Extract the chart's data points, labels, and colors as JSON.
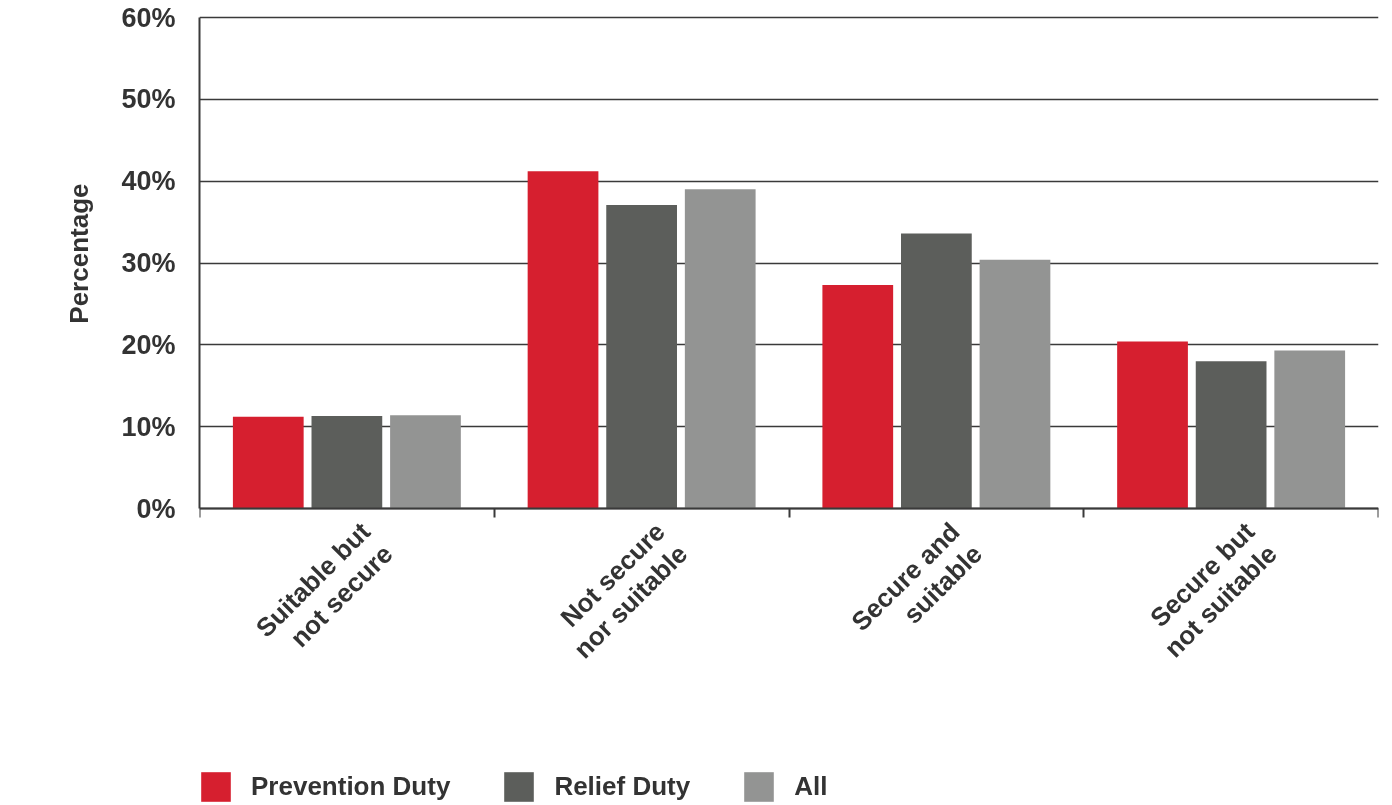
{
  "chart_data": {
    "type": "bar",
    "ylabel": "Percentage",
    "categories": [
      "Suitable but not secure",
      "Not secure nor suitable",
      "Secure and suitable",
      "Secure but not suitable"
    ],
    "series": [
      {
        "name": "Prevention Duty",
        "color": "#d61f2f",
        "values": [
          11.2,
          41.2,
          27.3,
          20.4
        ]
      },
      {
        "name": "Relief Duty",
        "color": "#5c5e5b",
        "values": [
          11.3,
          37.1,
          33.6,
          18.0
        ]
      },
      {
        "name": "All",
        "color": "#939493",
        "values": [
          11.4,
          39.0,
          30.4,
          19.3
        ]
      }
    ],
    "ylim": [
      0,
      60
    ],
    "yticks": [
      {
        "value": 0,
        "label": "0%"
      },
      {
        "value": 10,
        "label": "10%"
      },
      {
        "value": 20,
        "label": "20%"
      },
      {
        "value": 30,
        "label": "30%"
      },
      {
        "value": 40,
        "label": "40%"
      },
      {
        "value": 50,
        "label": "50%"
      },
      {
        "value": 60,
        "label": "60%"
      }
    ],
    "grid": "y",
    "legend": "bottom"
  }
}
